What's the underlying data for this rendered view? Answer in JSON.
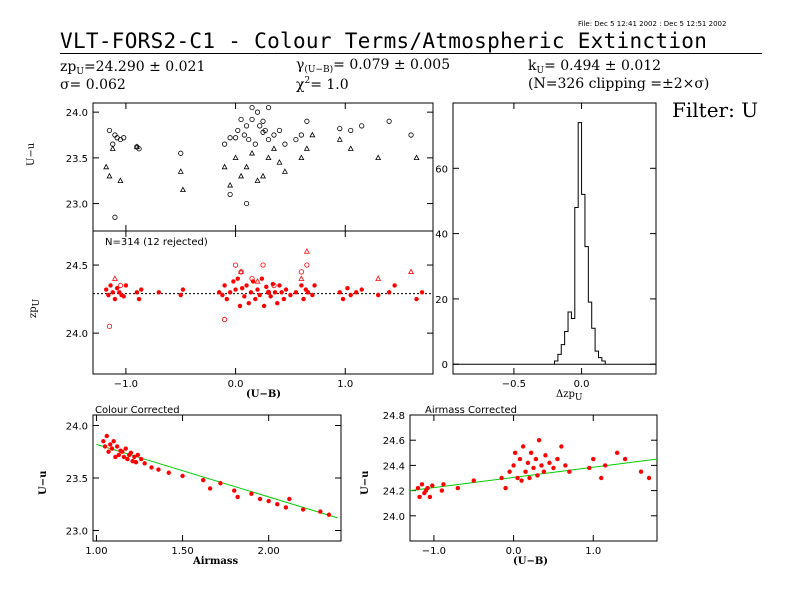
{
  "header": {
    "file_line": "File: Dec  5 12:41 2002 : Dec  5 12:51 2002",
    "title": "VLT-FORS2-C1 - Colour Terms/Atmospheric Extinction",
    "zp_sym": "zp",
    "zp_sub": "U",
    "zp_val": "=24.290 ± 0.021",
    "sigma": "σ= 0.062",
    "gamma_sym": "γ",
    "gamma_sub": "(U−B)",
    "gamma_val": "= 0.079 ± 0.005",
    "chi_sym": "χ",
    "chi_sup": "2",
    "chi_val": "=  1.0",
    "k_sym": "k",
    "k_sub": "U",
    "k_val": "= 0.494 ± 0.012",
    "n_clip": "(N=326 clipping =±2×σ)",
    "filter": "Filter: U"
  },
  "colors": {
    "points": "#ff0000",
    "fit": "#00cc00",
    "axes": "#000000"
  },
  "chart_data": [
    {
      "id": "top-raw",
      "type": "scatter",
      "ylabel": "U−u",
      "xlim": [
        -1.3,
        1.8
      ],
      "ylim": [
        22.7,
        24.1
      ],
      "yticks": [
        23.0,
        23.5,
        24.0
      ],
      "ytick_labels": [
        "23.0",
        "23.5",
        "24.0"
      ],
      "series": [
        {
          "marker": "circle",
          "x": [
            -1.15,
            -1.12,
            -1.1,
            -1.08,
            -1.05,
            -1.02,
            -0.9,
            -0.88,
            -0.5,
            -0.1,
            -0.05,
            0.0,
            0.02,
            0.05,
            0.08,
            0.1,
            0.12,
            0.15,
            0.18,
            0.2,
            0.22,
            0.25,
            0.27,
            0.3,
            0.35,
            0.4,
            0.45,
            0.55,
            0.6,
            0.65,
            0.95,
            1.05,
            1.15,
            1.4,
            1.6
          ],
          "y": [
            23.8,
            23.65,
            23.75,
            23.72,
            23.7,
            23.72,
            23.62,
            23.6,
            23.55,
            23.65,
            23.72,
            23.72,
            23.8,
            23.92,
            23.75,
            23.85,
            23.7,
            23.92,
            23.65,
            24.0,
            23.85,
            23.78,
            23.8,
            23.7,
            23.75,
            23.8,
            23.65,
            23.7,
            23.75,
            23.9,
            23.82,
            23.8,
            23.85,
            23.9,
            23.75
          ]
        },
        {
          "marker": "triangle",
          "x": [
            -1.18,
            -1.15,
            -1.12,
            -1.05,
            -0.9,
            -0.5,
            -0.48,
            -0.1,
            -0.05,
            0.0,
            0.05,
            0.1,
            0.15,
            0.2,
            0.25,
            0.3,
            0.35,
            0.4,
            0.45,
            0.6,
            0.65,
            0.7,
            0.95,
            1.05,
            1.3,
            1.65
          ],
          "y": [
            23.4,
            23.3,
            23.6,
            23.25,
            23.62,
            23.35,
            23.15,
            23.4,
            23.2,
            23.5,
            23.3,
            23.4,
            23.55,
            23.25,
            23.3,
            23.5,
            23.6,
            23.45,
            23.35,
            23.5,
            23.6,
            23.75,
            23.7,
            23.6,
            23.5,
            23.5
          ]
        },
        {
          "marker": "circle",
          "x": [
            -1.1,
            -0.05,
            0.1,
            0.15,
            0.25,
            0.3
          ],
          "y": [
            22.85,
            23.1,
            23.0,
            24.05,
            23.9,
            24.05
          ]
        }
      ]
    },
    {
      "id": "mid-zp",
      "type": "scatter",
      "annotation": "N=314 (12 rejected)",
      "ylabel_sym": "zp",
      "ylabel_sub": "U",
      "xlabel": "(U−B)",
      "xlim": [
        -1.3,
        1.8
      ],
      "ylim": [
        23.7,
        24.75
      ],
      "yticks": [
        24.0,
        24.5
      ],
      "ytick_labels": [
        "24.0",
        "24.5"
      ],
      "xticks": [
        -1.0,
        0.0,
        1.0
      ],
      "xtick_labels": [
        "−1.0",
        "0.0",
        "1.0"
      ],
      "fit_y": 24.29,
      "series": [
        {
          "marker": "dot",
          "x": [
            -1.18,
            -1.16,
            -1.14,
            -1.12,
            -1.1,
            -1.08,
            -1.06,
            -1.04,
            -1.02,
            -1.0,
            -0.9,
            -0.88,
            -0.86,
            -0.7,
            -0.5,
            -0.48,
            -0.15,
            -0.12,
            -0.1,
            -0.08,
            -0.05,
            -0.02,
            0.0,
            0.02,
            0.04,
            0.06,
            0.08,
            0.1,
            0.12,
            0.14,
            0.16,
            0.18,
            0.2,
            0.22,
            0.24,
            0.26,
            0.28,
            0.3,
            0.32,
            0.34,
            0.36,
            0.38,
            0.4,
            0.42,
            0.44,
            0.46,
            0.5,
            0.55,
            0.6,
            0.62,
            0.64,
            0.66,
            0.7,
            0.72,
            0.95,
            0.98,
            1.02,
            1.05,
            1.1,
            1.15,
            1.3,
            1.4,
            1.45,
            1.65,
            1.7
          ],
          "y": [
            24.32,
            24.28,
            24.35,
            24.3,
            24.25,
            24.33,
            24.3,
            24.28,
            24.27,
            24.35,
            24.3,
            24.25,
            24.32,
            24.3,
            24.28,
            24.32,
            24.3,
            24.28,
            24.35,
            24.25,
            24.3,
            24.38,
            24.32,
            24.4,
            24.2,
            24.33,
            24.27,
            24.35,
            24.22,
            24.3,
            24.38,
            24.25,
            24.32,
            24.28,
            24.4,
            24.2,
            24.34,
            24.3,
            24.27,
            24.36,
            24.3,
            24.22,
            24.35,
            24.3,
            24.25,
            24.32,
            24.28,
            24.3,
            24.35,
            24.25,
            24.32,
            24.3,
            24.28,
            24.35,
            24.3,
            24.25,
            24.33,
            24.28,
            24.3,
            24.32,
            24.28,
            24.3,
            24.35,
            24.25,
            24.3
          ]
        },
        {
          "marker": "circle",
          "x": [
            -1.15,
            -1.05,
            -0.1,
            0.0,
            0.05,
            0.15,
            0.25,
            0.3,
            0.35,
            0.6,
            0.65
          ],
          "y": [
            24.05,
            24.35,
            24.1,
            24.5,
            24.45,
            24.4,
            24.5,
            24.3,
            24.35,
            24.45,
            24.5
          ]
        },
        {
          "marker": "triangle",
          "x": [
            -1.1,
            0.05,
            0.2,
            0.6,
            0.65,
            1.3,
            1.6
          ],
          "y": [
            24.4,
            24.45,
            24.38,
            24.4,
            24.6,
            24.4,
            24.45
          ]
        }
      ]
    },
    {
      "id": "hist",
      "type": "histogram",
      "xlabel_sym": "Δzp",
      "xlabel_sub": "U",
      "xlim": [
        -0.95,
        0.55
      ],
      "ylim": [
        -3,
        80
      ],
      "xticks": [
        -0.5,
        0.0
      ],
      "xtick_labels": [
        "−0.5",
        "0.0"
      ],
      "yticks": [
        0,
        20,
        40,
        60
      ],
      "ytick_labels": [
        "0",
        "20",
        "40",
        "60"
      ],
      "bin_edges": [
        -0.2,
        -0.175,
        -0.15,
        -0.125,
        -0.1,
        -0.075,
        -0.05,
        -0.025,
        0.0,
        0.025,
        0.05,
        0.075,
        0.1,
        0.125,
        0.15,
        0.175
      ],
      "counts": [
        1,
        3,
        6,
        10,
        16,
        14,
        48,
        74,
        52,
        36,
        19,
        11,
        4,
        2,
        1
      ]
    },
    {
      "id": "colour-corrected",
      "type": "scatter",
      "title": "Colour Corrected",
      "ylabel": "U−u",
      "xlabel": "Airmass",
      "xlim": [
        0.98,
        2.42
      ],
      "ylim": [
        22.9,
        24.1
      ],
      "xticks": [
        1.0,
        1.5,
        2.0
      ],
      "xtick_labels": [
        "1.00",
        "1.50",
        "2.00"
      ],
      "yticks": [
        23.0,
        23.5,
        24.0
      ],
      "ytick_labels": [
        "23.0",
        "23.5",
        "24.0"
      ],
      "fit": {
        "x": [
          1.0,
          2.4
        ],
        "y": [
          23.82,
          23.12
        ]
      },
      "series": [
        {
          "marker": "dot",
          "x": [
            1.04,
            1.05,
            1.06,
            1.07,
            1.08,
            1.09,
            1.1,
            1.11,
            1.12,
            1.13,
            1.14,
            1.15,
            1.16,
            1.17,
            1.18,
            1.19,
            1.2,
            1.21,
            1.22,
            1.23,
            1.24,
            1.26,
            1.28,
            1.32,
            1.36,
            1.42,
            1.5,
            1.62,
            1.66,
            1.72,
            1.8,
            1.82,
            1.9,
            1.95,
            2.0,
            2.05,
            2.1,
            2.12,
            2.2,
            2.3,
            2.35
          ],
          "y": [
            23.85,
            23.8,
            23.9,
            23.75,
            23.82,
            23.78,
            23.85,
            23.7,
            23.8,
            23.72,
            23.76,
            23.75,
            23.7,
            23.78,
            23.68,
            23.72,
            23.74,
            23.66,
            23.7,
            23.65,
            23.72,
            23.68,
            23.64,
            23.6,
            23.58,
            23.55,
            23.52,
            23.48,
            23.4,
            23.45,
            23.38,
            23.32,
            23.35,
            23.3,
            23.28,
            23.25,
            23.22,
            23.3,
            23.2,
            23.18,
            23.15
          ]
        }
      ]
    },
    {
      "id": "airmass-corrected",
      "type": "scatter",
      "title": "Airmass Corrected",
      "ylabel": "U−u",
      "xlabel": "(U−B)",
      "xlim": [
        -1.3,
        1.8
      ],
      "ylim": [
        23.8,
        24.8
      ],
      "xticks": [
        -1.0,
        0.0,
        1.0
      ],
      "xtick_labels": [
        "−1.0",
        "0.0",
        "1.0"
      ],
      "yticks": [
        24.0,
        24.2,
        24.4,
        24.6,
        24.8
      ],
      "ytick_labels": [
        "24.0",
        "24.2",
        "24.4",
        "24.6",
        "24.8"
      ],
      "fit": {
        "x": [
          -1.3,
          1.8
        ],
        "y": [
          24.2,
          24.45
        ]
      },
      "series": [
        {
          "marker": "dot",
          "x": [
            -1.2,
            -1.18,
            -1.15,
            -1.12,
            -1.1,
            -1.08,
            -1.05,
            -1.02,
            -0.9,
            -0.88,
            -0.7,
            -0.5,
            -0.15,
            -0.1,
            -0.05,
            0.0,
            0.02,
            0.05,
            0.08,
            0.1,
            0.12,
            0.15,
            0.18,
            0.2,
            0.22,
            0.25,
            0.28,
            0.3,
            0.32,
            0.35,
            0.38,
            0.4,
            0.45,
            0.5,
            0.55,
            0.6,
            0.65,
            0.7,
            0.95,
            1.0,
            1.1,
            1.15,
            1.3,
            1.4,
            1.6,
            1.7
          ],
          "y": [
            24.22,
            24.15,
            24.25,
            24.18,
            24.2,
            24.22,
            24.15,
            24.24,
            24.2,
            24.25,
            24.22,
            24.28,
            24.3,
            24.22,
            24.35,
            24.4,
            24.5,
            24.3,
            24.45,
            24.28,
            24.55,
            24.35,
            24.42,
            24.3,
            24.5,
            24.38,
            24.45,
            24.32,
            24.6,
            24.4,
            24.35,
            24.48,
            24.42,
            24.38,
            24.45,
            24.55,
            24.4,
            24.35,
            24.38,
            24.45,
            24.3,
            24.4,
            24.5,
            24.45,
            24.35,
            24.3
          ]
        }
      ]
    }
  ]
}
